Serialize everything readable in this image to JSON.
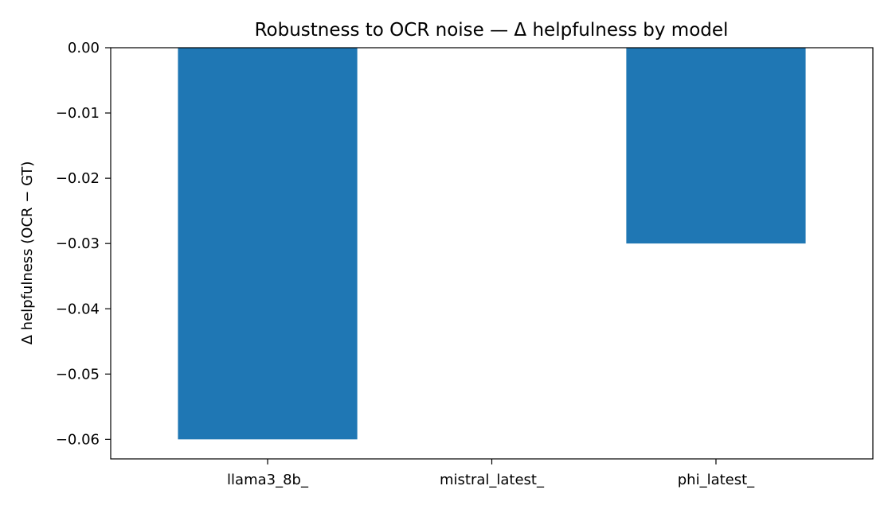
{
  "chart_data": {
    "type": "bar",
    "title": "Robustness to OCR noise — Δ helpfulness by model",
    "xlabel": "",
    "ylabel": "Δ helpfulness (OCR − GT)",
    "categories": [
      "llama3_8b_",
      "mistral_latest_",
      "phi_latest_"
    ],
    "values": [
      -0.06,
      0.0,
      -0.03
    ],
    "ylim": [
      -0.063,
      0.0
    ],
    "yticks": [
      0.0,
      -0.01,
      -0.02,
      -0.03,
      -0.04,
      -0.05,
      -0.06
    ],
    "ytick_labels": [
      "0.00",
      "−0.01",
      "−0.02",
      "−0.03",
      "−0.04",
      "−0.05",
      "−0.06"
    ],
    "bar_color": "#1f77b4",
    "grid": false,
    "legend": "none"
  }
}
